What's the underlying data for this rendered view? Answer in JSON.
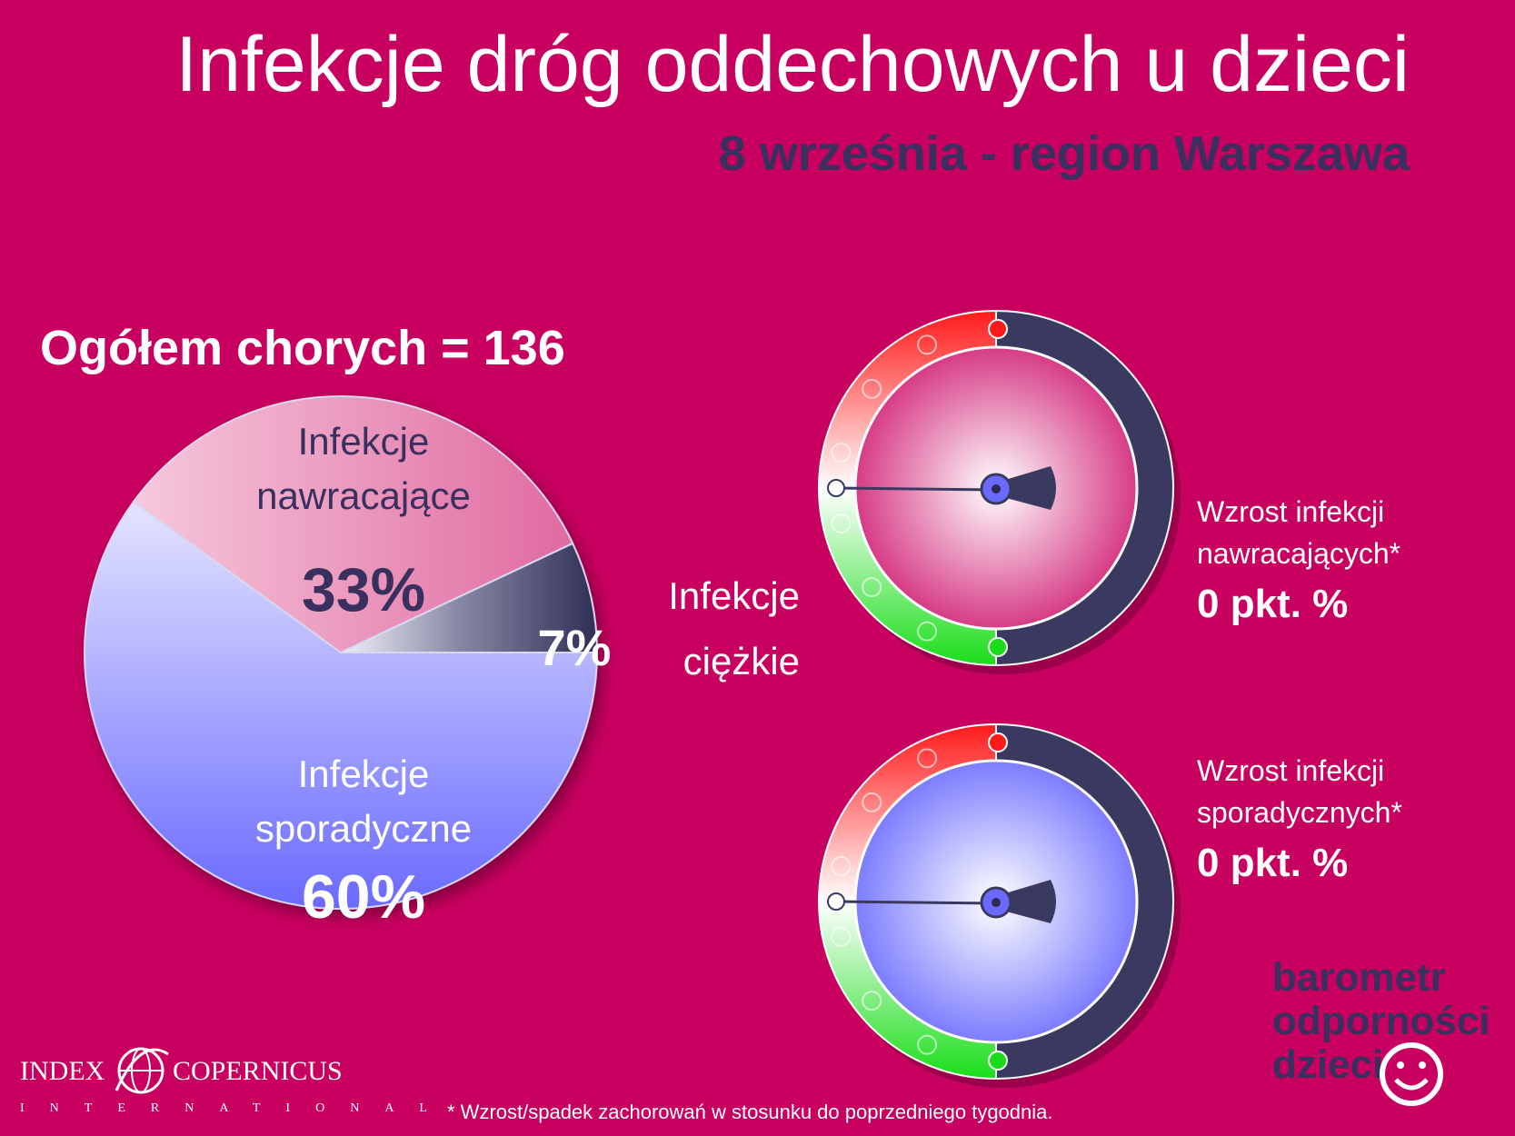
{
  "title": "Infekcje dróg oddechowych u dzieci",
  "subtitle": "8 września - region Warszawa",
  "total_label": "Ogółem chorych = 136",
  "chart_data": {
    "type": "pie",
    "slices": [
      {
        "name": "Infekcje nawracające",
        "label_lines": [
          "Infekcje",
          "nawracające"
        ],
        "value": 33,
        "value_label": "33%",
        "color": "#e878a8"
      },
      {
        "name": "Infekcje ciężkie",
        "label_lines": [
          "Infekcje",
          "ciężkie"
        ],
        "value": 7,
        "value_label": "7%",
        "color": "#3a3a60"
      },
      {
        "name": "Infekcje sporadyczne",
        "label_lines": [
          "Infekcje",
          "sporadyczne"
        ],
        "value": 60,
        "value_label": "60%",
        "color": "#8a8aff"
      }
    ]
  },
  "gauges": [
    {
      "lines": [
        "Wzrost infekcji",
        "nawracających*"
      ],
      "value_label": "0 pkt. %",
      "value": 0,
      "face_color": "#d63b86"
    },
    {
      "lines": [
        "Wzrost infekcji",
        "sporadycznych*"
      ],
      "value_label": "0 pkt. %",
      "value": 0,
      "face_color": "#7c7cff"
    }
  ],
  "brand": {
    "line1": "barometr",
    "line2": "odporności",
    "line3": "dzieci"
  },
  "logo": {
    "left": "INDEX",
    "right": "COPERNICUS",
    "sub": "INTERNATIONAL"
  },
  "footnote": "* Wzrost/spadek zachorowań w stosunku do poprzedniego tygodnia.",
  "colors": {
    "background": "#c8005f",
    "accent_dark": "#3a3060",
    "gauge_red": "#ff2020",
    "gauge_green": "#22dd22",
    "gauge_dark": "#3a3a60"
  }
}
